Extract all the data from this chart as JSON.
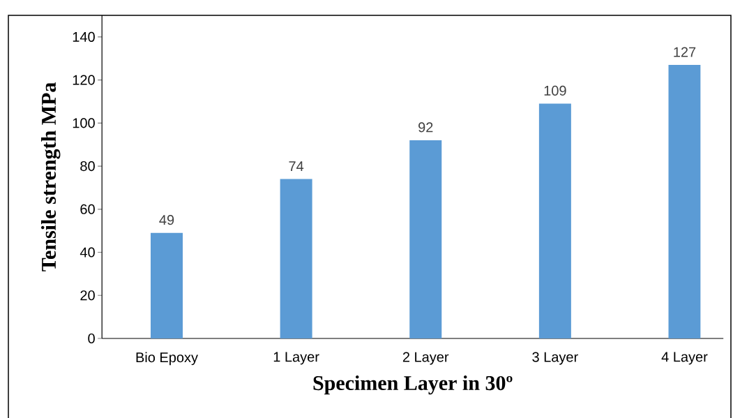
{
  "chart_data": {
    "type": "bar",
    "xlabel": "Specimen Layer in 30º",
    "ylabel": "Tensile strength MPa",
    "categories": [
      "Bio Epoxy",
      "1 Layer",
      "2 Layer",
      "3 Layer",
      "4 Layer"
    ],
    "values": [
      49,
      74,
      92,
      109,
      127
    ],
    "color": "#5b9bd5",
    "data_labels": true,
    "grid": false,
    "ylim": [
      0,
      150
    ],
    "yticks": [
      0,
      20,
      40,
      60,
      80,
      100,
      120,
      140
    ]
  }
}
